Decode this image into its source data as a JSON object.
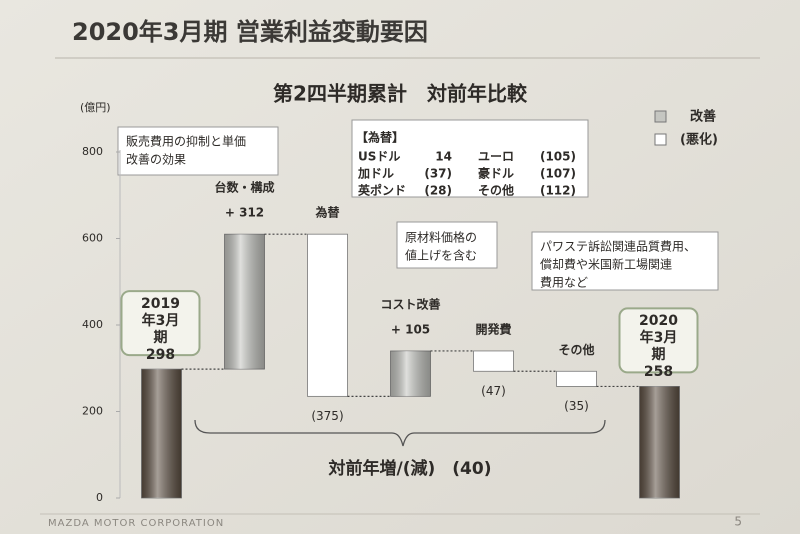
{
  "header": {
    "title": "2020年3月期 営業利益変動要因"
  },
  "footer": {
    "company": "MAZDA MOTOR CORPORATION",
    "page": "5"
  },
  "chart_data": {
    "type": "waterfall",
    "title": "第2四半期累計　対前年比較",
    "y_label": "(億円)",
    "categories": [
      "2019年3月期",
      "台数・構成",
      "為替",
      "コスト改善",
      "開発費",
      "その他",
      "2020年3月期"
    ],
    "values": [
      298,
      312,
      -375,
      105,
      -47,
      -35,
      258
    ],
    "value_labels": [
      "298",
      "+ 312",
      "(375)",
      "+ 105",
      "(47)",
      "(35)",
      "258"
    ],
    "totals": [
      true,
      false,
      false,
      false,
      false,
      false,
      true
    ],
    "total_color": "#5e5043",
    "legend": [
      {
        "name": "改善",
        "color": "#c5c6c1"
      },
      {
        "name": "(悪化)",
        "color": "#ffffff"
      }
    ],
    "ylim": [
      0,
      800
    ],
    "yticks": [
      0,
      200,
      400,
      600,
      800
    ],
    "summary": "対前年増/(減)　(40)",
    "annotations": [
      {
        "lines": [
          "販売費用の抑制と単価",
          "改善の効果"
        ]
      },
      {
        "lines": [
          "原材料価格の",
          "値上げを含む"
        ]
      },
      {
        "lines": [
          "パワステ訴訟関連品質費用、",
          "償却費や米国新工場関連",
          "費用など"
        ]
      }
    ],
    "fx_table": {
      "title": "【為替】",
      "rows": [
        [
          "USドル",
          "14",
          "ユーロ",
          "(105)"
        ],
        [
          "加ドル",
          "(37)",
          "豪ドル",
          "(107)"
        ],
        [
          "英ポンド",
          "(28)",
          "その他",
          "(112)"
        ]
      ]
    }
  }
}
